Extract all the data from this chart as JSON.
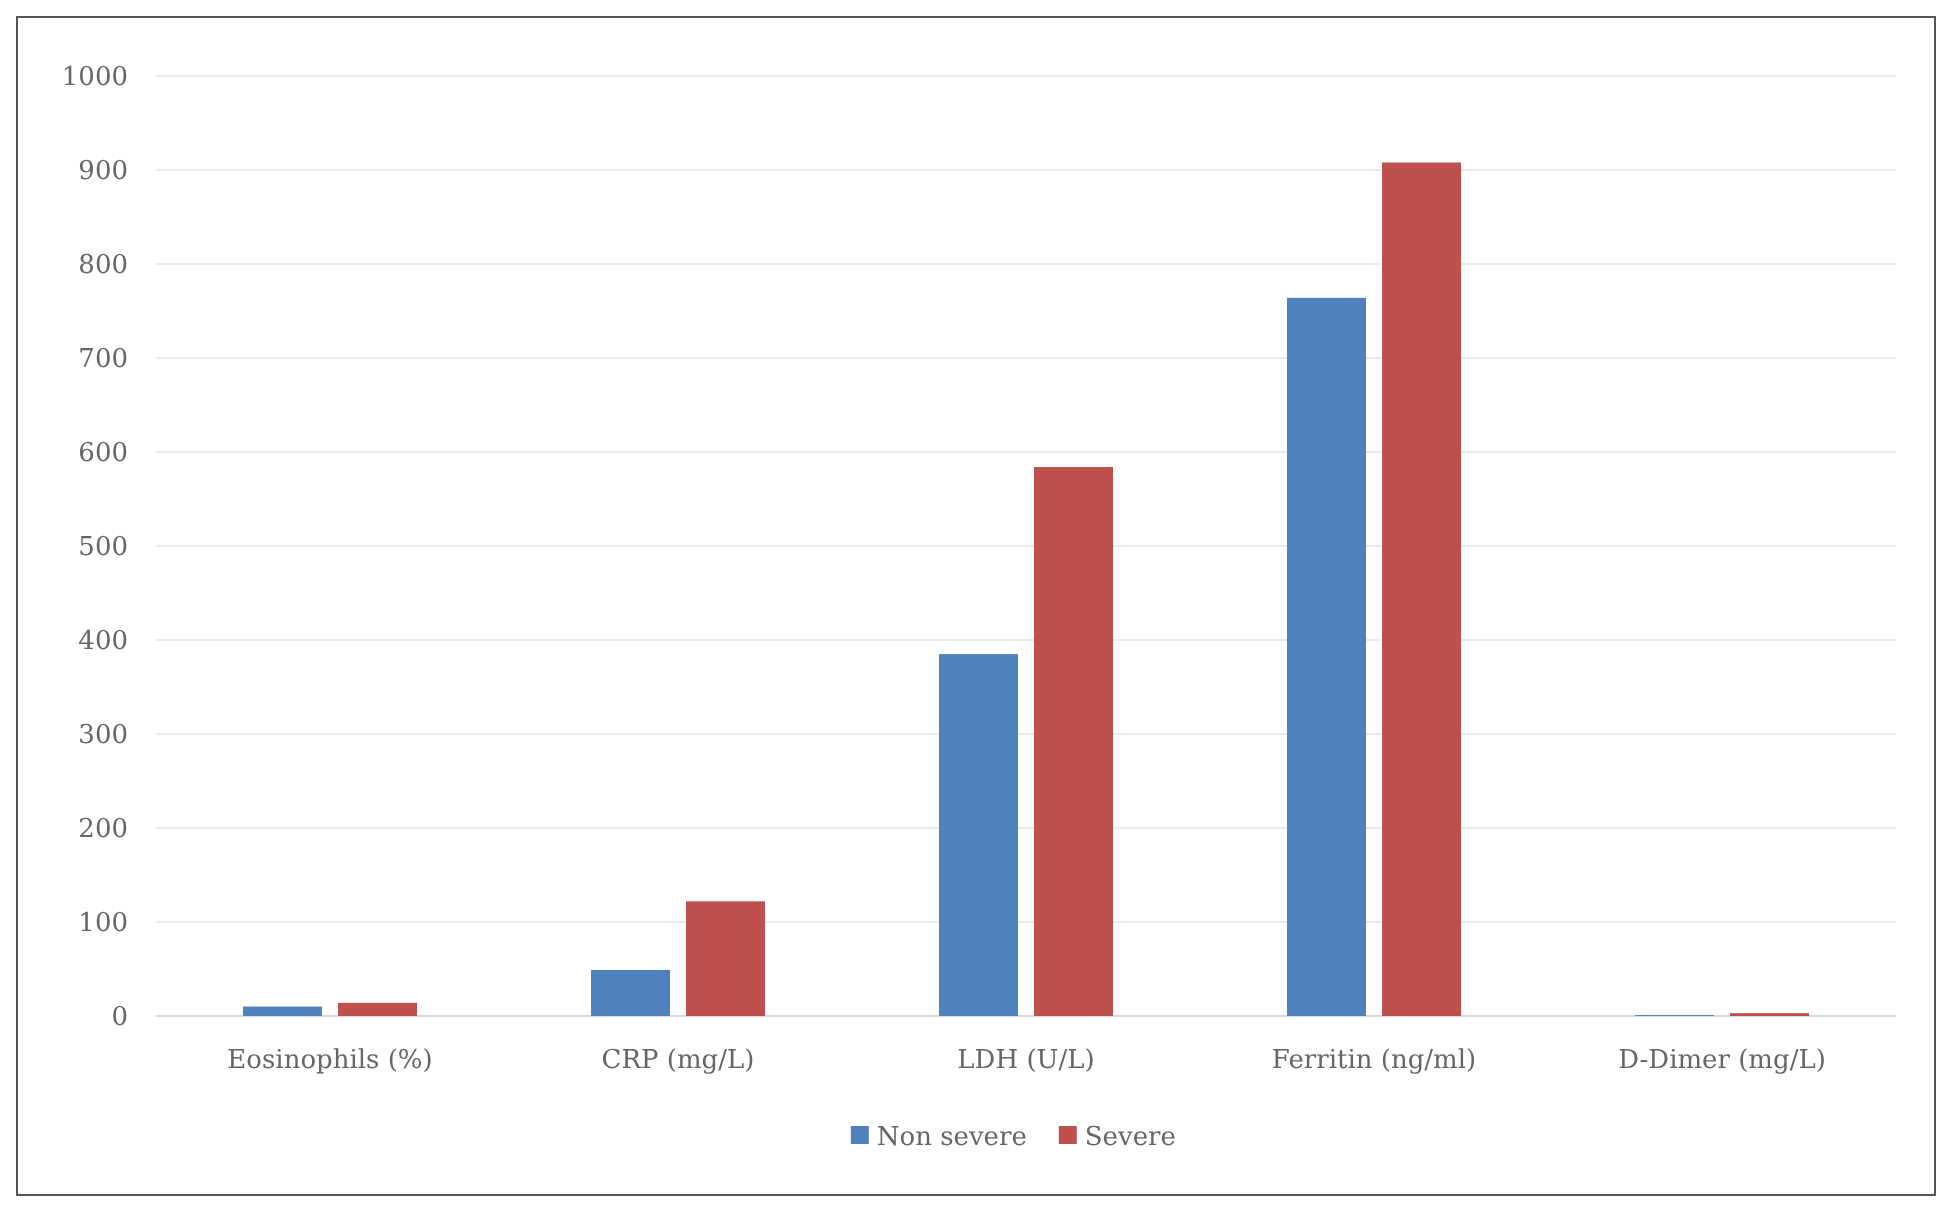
{
  "chart_data": {
    "type": "bar",
    "categories": [
      "Eosinophils (%)",
      "CRP (mg/L)",
      "LDH (U/L)",
      "Ferritin (ng/ml)",
      "D-Dimer (mg/L)"
    ],
    "series": [
      {
        "name": "Non severe",
        "color": "#4f81bd",
        "values": [
          10,
          49,
          385,
          764,
          1
        ]
      },
      {
        "name": "Severe",
        "color": "#c0504d",
        "values": [
          14,
          122,
          584,
          908,
          3
        ]
      }
    ],
    "ylim": [
      0,
      1000
    ],
    "yticks": [
      0,
      100,
      200,
      300,
      400,
      500,
      600,
      700,
      800,
      900,
      1000
    ],
    "grid": "y",
    "legend": "bottom"
  }
}
